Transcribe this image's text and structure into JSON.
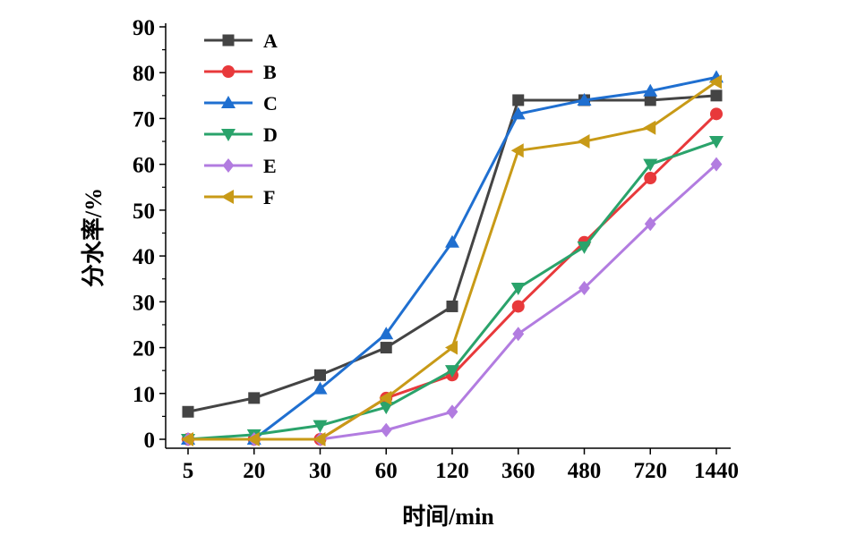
{
  "chart_data": {
    "type": "line",
    "title": "",
    "xlabel": "时间/min",
    "ylabel": "分水率/%",
    "categories": [
      "5",
      "20",
      "30",
      "60",
      "120",
      "360",
      "480",
      "720",
      "1440"
    ],
    "ylim": [
      0,
      90
    ],
    "yticks": [
      0,
      10,
      20,
      30,
      40,
      50,
      60,
      70,
      80,
      90
    ],
    "grid": false,
    "legend_position": "top-left",
    "series": [
      {
        "name": "A",
        "marker": "square",
        "color": "#444444",
        "values": [
          6,
          9,
          14,
          20,
          29,
          74,
          74,
          74,
          75
        ]
      },
      {
        "name": "B",
        "marker": "circle",
        "color": "#e8393b",
        "values": [
          0,
          0,
          0,
          9,
          14,
          29,
          43,
          57,
          71
        ]
      },
      {
        "name": "C",
        "marker": "triangle-up",
        "color": "#1f6fd0",
        "values": [
          0,
          0,
          11,
          23,
          43,
          71,
          74,
          76,
          79
        ]
      },
      {
        "name": "D",
        "marker": "triangle-down",
        "color": "#2aa36b",
        "values": [
          0,
          1,
          3,
          7,
          15,
          33,
          42,
          60,
          65
        ]
      },
      {
        "name": "E",
        "marker": "diamond",
        "color": "#b27ce0",
        "values": [
          0,
          0,
          0,
          2,
          6,
          23,
          33,
          47,
          60
        ]
      },
      {
        "name": "F",
        "marker": "triangle-left",
        "color": "#c89a17",
        "values": [
          0,
          0,
          0,
          9,
          20,
          63,
          65,
          68,
          78
        ]
      }
    ]
  }
}
